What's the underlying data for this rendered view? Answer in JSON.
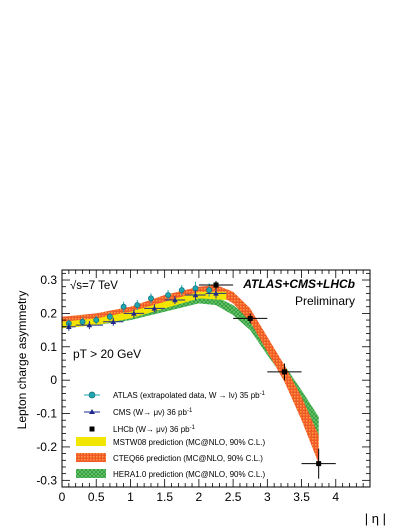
{
  "chart_data": {
    "type": "scatter",
    "ylabel": "Lepton charge asymmetry",
    "xlabel": "| η |",
    "xlim": [
      0,
      4.5
    ],
    "ylim": [
      -0.32,
      0.33
    ],
    "x_ticks": [
      "0",
      "0.5",
      "1",
      "1.5",
      "2",
      "2.5",
      "3",
      "3.5",
      "4"
    ],
    "y_ticks": [
      "-0.3",
      "-0.2",
      "-0.1",
      "0",
      "0.1",
      "0.2",
      "0.3"
    ],
    "annotations": {
      "sqrt_s": "√s=7 TeV",
      "experiment": "ATLAS+CMS+LHCb",
      "status": "Preliminary",
      "pt_cut": "pT > 20 GeV"
    },
    "legend": [
      {
        "id": "atlas",
        "label": "ATLAS (extrapolated data, W → lν) 35 pb",
        "sup": "-1"
      },
      {
        "id": "cms",
        "label": "CMS (W→ μν) 36 pb",
        "sup": "-1"
      },
      {
        "id": "lhcb",
        "label": "LHCb (W→ μν) 36 pb",
        "sup": "-1"
      },
      {
        "id": "mstw",
        "label": "MSTW08 prediction (MC@NLO, 90% C.L.)"
      },
      {
        "id": "cteq",
        "label": "CTEQ66 prediction (MC@NLO, 90% C.L.)"
      },
      {
        "id": "hera",
        "label": "HERA1.0 prediction (MC@NLO, 90% C.L.)"
      }
    ],
    "colors": {
      "atlas": "#1fa6b0",
      "cms": "#1f2a8c",
      "lhcb": "#000000",
      "mstw": "#f2e600",
      "cteq": "#e8402a",
      "cteq_edge": "#ff8c1a",
      "hera": "#3cb44b"
    },
    "bands": {
      "mstw": {
        "x": [
          0,
          0.5,
          1.0,
          1.5,
          2.0,
          2.4
        ],
        "lo": [
          0.155,
          0.165,
          0.185,
          0.215,
          0.245,
          0.24
        ],
        "hi": [
          0.175,
          0.185,
          0.205,
          0.235,
          0.265,
          0.265
        ]
      },
      "cteq": {
        "x": [
          0,
          0.5,
          1.0,
          1.5,
          2.0,
          2.25,
          2.5,
          2.75,
          3.0,
          3.25,
          3.5,
          3.75
        ],
        "lo": [
          0.165,
          0.175,
          0.195,
          0.225,
          0.255,
          0.26,
          0.23,
          0.175,
          0.085,
          -0.005,
          -0.12,
          -0.25
        ],
        "hi": [
          0.19,
          0.2,
          0.22,
          0.255,
          0.28,
          0.285,
          0.265,
          0.215,
          0.13,
          0.045,
          -0.05,
          -0.165
        ]
      },
      "hera": {
        "x": [
          0,
          0.5,
          1.0,
          1.5,
          2.0,
          2.25,
          2.5,
          2.75,
          3.0,
          3.25,
          3.5,
          3.75
        ],
        "lo": [
          0.16,
          0.165,
          0.18,
          0.205,
          0.23,
          0.225,
          0.195,
          0.15,
          0.075,
          0.005,
          -0.08,
          -0.18
        ],
        "hi": [
          0.175,
          0.18,
          0.195,
          0.22,
          0.245,
          0.25,
          0.225,
          0.185,
          0.115,
          0.045,
          -0.03,
          -0.11
        ]
      }
    },
    "series": [
      {
        "name": "ATLAS",
        "x": [
          0.1,
          0.3,
          0.5,
          0.7,
          0.9,
          1.1,
          1.3,
          1.55,
          1.75,
          1.95,
          2.15
        ],
        "y": [
          0.17,
          0.175,
          0.18,
          0.19,
          0.22,
          0.225,
          0.245,
          0.255,
          0.27,
          0.275,
          0.27
        ],
        "yerr": [
          0.012,
          0.012,
          0.012,
          0.012,
          0.015,
          0.015,
          0.015,
          0.015,
          0.015,
          0.02,
          0.02
        ]
      },
      {
        "name": "CMS",
        "x": [
          0.1,
          0.4,
          0.75,
          1.05,
          1.35,
          1.65,
          1.95,
          2.25
        ],
        "xerr": [
          0.1,
          0.2,
          0.15,
          0.15,
          0.15,
          0.15,
          0.15,
          0.15
        ],
        "y": [
          0.16,
          0.165,
          0.175,
          0.2,
          0.215,
          0.24,
          0.255,
          0.26
        ],
        "yerr": [
          0.012,
          0.012,
          0.012,
          0.012,
          0.012,
          0.012,
          0.015,
          0.015
        ]
      },
      {
        "name": "LHCb",
        "x": [
          2.25,
          2.75,
          3.25,
          3.75
        ],
        "xerr": [
          0.25,
          0.25,
          0.25,
          0.25
        ],
        "y": [
          0.285,
          0.185,
          0.025,
          -0.25
        ],
        "yerr": [
          0.012,
          0.015,
          0.025,
          0.045
        ]
      }
    ]
  }
}
